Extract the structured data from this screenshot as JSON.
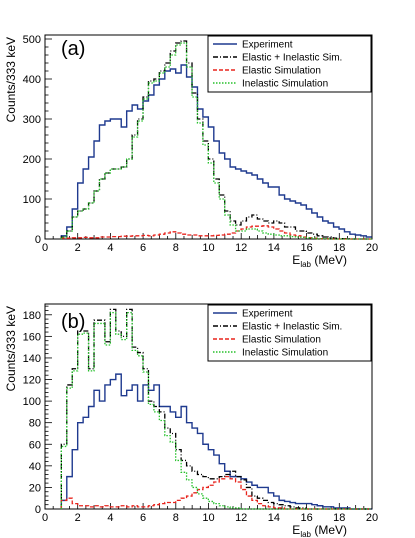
{
  "chart_data": [
    {
      "type": "line",
      "panel_label": "(a)",
      "xlabel_main": "E",
      "xlabel_sub": "lab",
      "xlabel_unit": "(MeV)",
      "ylabel": "Counts/333 keV",
      "xlim": [
        0,
        20
      ],
      "ylim": [
        0,
        510
      ],
      "xticks": [
        "0",
        "2",
        "4",
        "6",
        "8",
        "10",
        "12",
        "14",
        "16",
        "18",
        "20"
      ],
      "yticks": [
        "0",
        "100",
        "200",
        "300",
        "400",
        "500"
      ],
      "ytick_values": [
        0,
        100,
        200,
        300,
        400,
        500
      ],
      "legend_position": "top-right",
      "bin_width": 0.333,
      "x_start": 1.0,
      "series": [
        {
          "name": "Experiment",
          "color": "#1f3a8f",
          "dash": "solid",
          "values": [
            8,
            30,
            75,
            140,
            175,
            205,
            245,
            285,
            295,
            300,
            300,
            280,
            320,
            335,
            325,
            345,
            360,
            385,
            400,
            420,
            425,
            415,
            435,
            405,
            380,
            325,
            305,
            280,
            245,
            215,
            200,
            180,
            175,
            170,
            165,
            160,
            150,
            140,
            130,
            130,
            110,
            100,
            95,
            90,
            85,
            75,
            65,
            55,
            45,
            40,
            30,
            25,
            18,
            12,
            10,
            8,
            5,
            3,
            2,
            1
          ]
        },
        {
          "name": "Elastic + Inelastic Sim.",
          "color": "#000000",
          "dash": "dashdot",
          "values": [
            5,
            20,
            55,
            70,
            75,
            90,
            120,
            150,
            165,
            175,
            175,
            180,
            200,
            260,
            300,
            355,
            395,
            400,
            420,
            440,
            470,
            490,
            495,
            440,
            365,
            300,
            245,
            200,
            150,
            110,
            70,
            45,
            35,
            45,
            55,
            60,
            50,
            45,
            40,
            45,
            40,
            30,
            30,
            20,
            20,
            15,
            12,
            8,
            5,
            3,
            2,
            1,
            1,
            0,
            0,
            0,
            0,
            0,
            0,
            0
          ]
        },
        {
          "name": "Elastic Simulation",
          "color": "#e8231c",
          "dash": "dash",
          "values": [
            2,
            2,
            3,
            3,
            4,
            3,
            3,
            5,
            5,
            6,
            6,
            7,
            7,
            8,
            8,
            9,
            8,
            10,
            12,
            15,
            18,
            15,
            12,
            10,
            10,
            8,
            8,
            8,
            9,
            10,
            12,
            15,
            20,
            25,
            30,
            32,
            32,
            33,
            30,
            25,
            20,
            15,
            10,
            8,
            5,
            3,
            2,
            1,
            1,
            0,
            0,
            0,
            0,
            0,
            0,
            0,
            0,
            0,
            0,
            0
          ]
        },
        {
          "name": "Inelastic Simulation",
          "color": "#27c12c",
          "dash": "dot",
          "values": [
            5,
            20,
            55,
            70,
            75,
            90,
            120,
            150,
            165,
            175,
            175,
            180,
            200,
            255,
            295,
            350,
            390,
            395,
            415,
            430,
            460,
            485,
            490,
            430,
            355,
            290,
            235,
            190,
            140,
            100,
            60,
            35,
            20,
            20,
            25,
            25,
            20,
            15,
            12,
            10,
            8,
            8,
            6,
            5,
            4,
            3,
            2,
            1,
            1,
            0,
            0,
            0,
            0,
            0,
            0,
            0,
            0,
            0,
            0,
            0
          ]
        }
      ]
    },
    {
      "type": "line",
      "panel_label": "(b)",
      "xlabel_main": "E",
      "xlabel_sub": "lab",
      "xlabel_unit": "(MeV)",
      "ylabel": "Counts/333 keV",
      "xlim": [
        0,
        20
      ],
      "ylim": [
        0,
        190
      ],
      "xticks": [
        "0",
        "2",
        "4",
        "6",
        "8",
        "10",
        "12",
        "14",
        "16",
        "18",
        "20"
      ],
      "yticks": [
        "0",
        "20",
        "40",
        "60",
        "80",
        "100",
        "120",
        "140",
        "160",
        "180"
      ],
      "ytick_values": [
        0,
        20,
        40,
        60,
        80,
        100,
        120,
        140,
        160,
        180
      ],
      "legend_position": "top-right",
      "bin_width": 0.333,
      "x_start": 1.0,
      "series": [
        {
          "name": "Experiment",
          "color": "#1f3a8f",
          "dash": "solid",
          "values": [
            8,
            30,
            55,
            80,
            85,
            95,
            110,
            100,
            115,
            120,
            125,
            105,
            110,
            115,
            100,
            115,
            110,
            115,
            95,
            95,
            90,
            85,
            95,
            80,
            75,
            70,
            60,
            55,
            50,
            42,
            35,
            30,
            30,
            28,
            25,
            22,
            20,
            20,
            15,
            12,
            8,
            7,
            6,
            5,
            5,
            5,
            4,
            3,
            2,
            2,
            1,
            1,
            1,
            0,
            0,
            0,
            0,
            0,
            0,
            0
          ]
        },
        {
          "name": "Elastic + Inelastic Sim.",
          "color": "#000000",
          "dash": "dashdot",
          "values": [
            60,
            115,
            130,
            165,
            165,
            130,
            175,
            175,
            155,
            185,
            165,
            160,
            185,
            150,
            145,
            130,
            100,
            95,
            90,
            75,
            70,
            55,
            45,
            40,
            35,
            32,
            30,
            28,
            28,
            30,
            32,
            35,
            30,
            27,
            20,
            12,
            10,
            8,
            6,
            5,
            4,
            3,
            2,
            1,
            1,
            0,
            0,
            0,
            0,
            0,
            0,
            0,
            0,
            0,
            0,
            0,
            0,
            0,
            0,
            0
          ]
        },
        {
          "name": "Elastic Simulation",
          "color": "#e8231c",
          "dash": "dash",
          "values": [
            8,
            10,
            5,
            3,
            3,
            2,
            3,
            2,
            3,
            2,
            2,
            3,
            2,
            3,
            2,
            2,
            3,
            4,
            5,
            6,
            6,
            8,
            10,
            12,
            15,
            18,
            20,
            22,
            25,
            28,
            30,
            28,
            25,
            18,
            12,
            8,
            5,
            3,
            2,
            1,
            1,
            0,
            0,
            0,
            0,
            0,
            0,
            0,
            0,
            0,
            0,
            0,
            0,
            0,
            0,
            0,
            0,
            0,
            0,
            0
          ]
        },
        {
          "name": "Inelastic Simulation",
          "color": "#27c12c",
          "dash": "dot",
          "values": [
            58,
            112,
            128,
            162,
            163,
            128,
            172,
            172,
            152,
            182,
            162,
            157,
            182,
            147,
            142,
            127,
            97,
            90,
            82,
            68,
            62,
            45,
            34,
            27,
            20,
            14,
            10,
            7,
            5,
            3,
            2,
            1,
            1,
            0,
            0,
            0,
            0,
            0,
            0,
            0,
            0,
            0,
            0,
            0,
            0,
            0,
            0,
            0,
            0,
            0,
            0,
            0,
            0,
            0,
            0,
            0,
            0,
            0,
            0,
            0
          ]
        }
      ]
    }
  ]
}
